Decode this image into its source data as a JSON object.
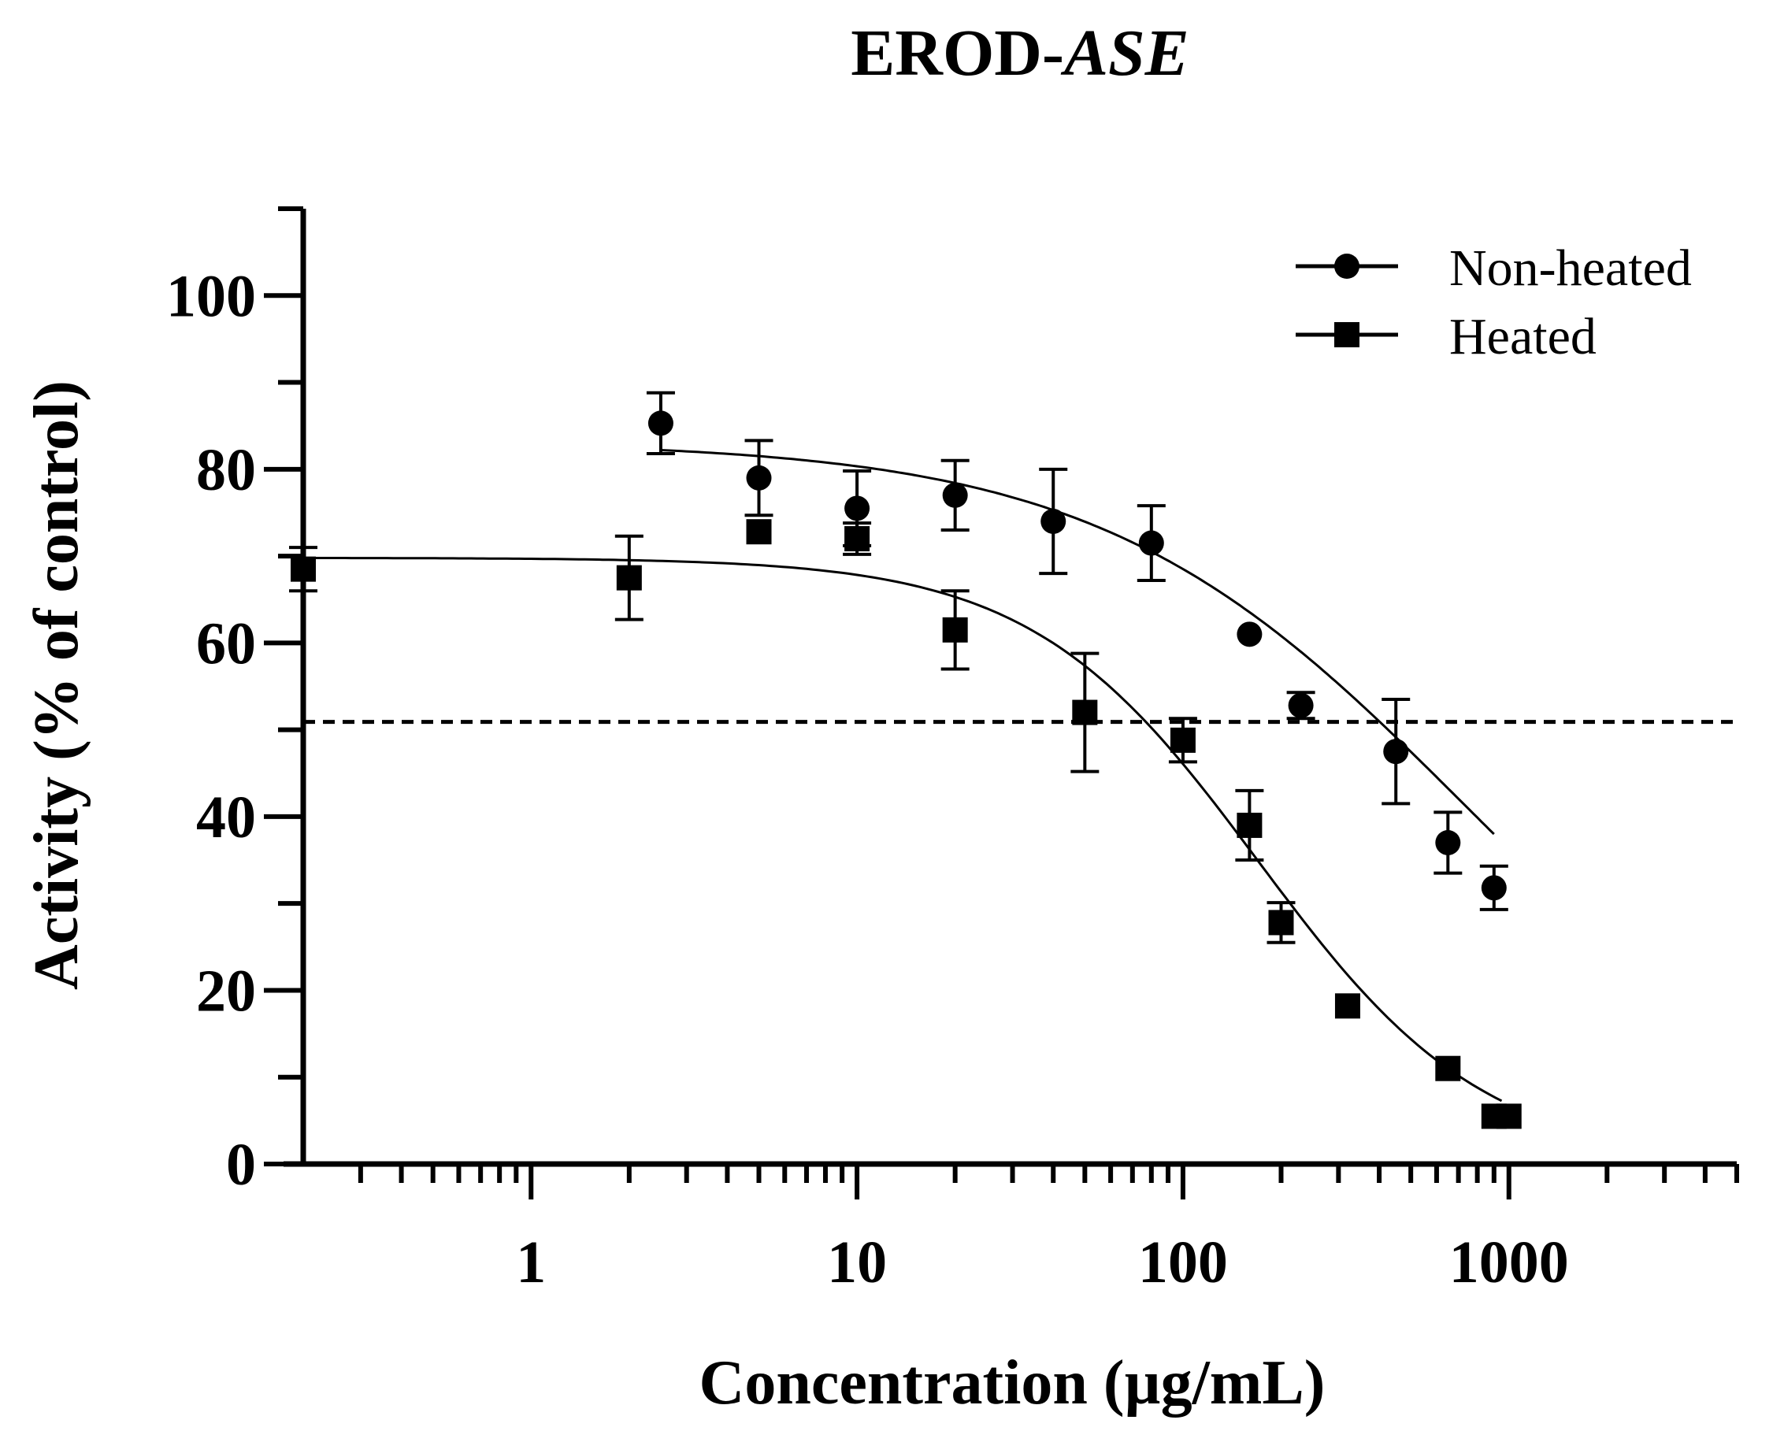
{
  "chart_data": {
    "type": "scatter",
    "title_main": "EROD-",
    "title_italic": "ASE",
    "xlabel": "Concentration (µg/mL)",
    "ylabel": "Activity (% of control)",
    "xscale": "log",
    "xlim": [
      0.2,
      5000
    ],
    "ylim": [
      0,
      110
    ],
    "x_ticks": [
      1,
      10,
      100,
      1000
    ],
    "x_tick_labels": [
      "1",
      "10",
      "100",
      "1000"
    ],
    "y_ticks": [
      0,
      20,
      40,
      60,
      80,
      100
    ],
    "y_tick_labels": [
      "0",
      "20",
      "40",
      "60",
      "80",
      "100"
    ],
    "reference_line": {
      "y": 50,
      "style": "dashed"
    },
    "legend_position": "top-right",
    "series": [
      {
        "name": "Non-heated",
        "marker": "circle",
        "points": [
          {
            "x": 2.5,
            "y": 85.3,
            "err": 3.5
          },
          {
            "x": 5,
            "y": 79.0,
            "err": 4.3
          },
          {
            "x": 10,
            "y": 75.5,
            "err": 4.3
          },
          {
            "x": 20,
            "y": 77.0,
            "err": 4.0
          },
          {
            "x": 40,
            "y": 74.0,
            "err": 6.0
          },
          {
            "x": 80,
            "y": 71.5,
            "err": 4.3
          },
          {
            "x": 160,
            "y": 61.0,
            "err": 0
          },
          {
            "x": 230,
            "y": 52.8,
            "err": 1.5
          },
          {
            "x": 450,
            "y": 47.5,
            "err": 6.0
          },
          {
            "x": 650,
            "y": 37.0,
            "err": 3.5
          },
          {
            "x": 900,
            "y": 31.8,
            "err": 2.5
          }
        ],
        "fit": {
          "top": 83.2,
          "bottom": 0,
          "ec50": 720,
          "hill": 0.78,
          "x_range": [
            2.5,
            900
          ]
        }
      },
      {
        "name": "Heated",
        "marker": "square",
        "points": [
          {
            "x": 0.2,
            "y": 68.5,
            "err": 2.5
          },
          {
            "x": 2,
            "y": 67.5,
            "err": 4.8
          },
          {
            "x": 5,
            "y": 72.8,
            "err": 0
          },
          {
            "x": 10,
            "y": 72.0,
            "err": 1.8
          },
          {
            "x": 20,
            "y": 61.5,
            "err": 4.5
          },
          {
            "x": 50,
            "y": 52.0,
            "err": 6.8
          },
          {
            "x": 100,
            "y": 48.8,
            "err": 2.5
          },
          {
            "x": 160,
            "y": 39.0,
            "err": 4.0
          },
          {
            "x": 200,
            "y": 27.8,
            "err": 2.3
          },
          {
            "x": 320,
            "y": 18.2,
            "err": 0
          },
          {
            "x": 650,
            "y": 11.0,
            "err": 0
          },
          {
            "x": 900,
            "y": 5.5,
            "err": 0
          },
          {
            "x": 1000,
            "y": 5.5,
            "err": 0
          }
        ],
        "fit": {
          "top": 69.8,
          "bottom": 0,
          "ec50": 170,
          "hill": 1.25,
          "x_range": [
            0.2,
            950
          ]
        }
      }
    ]
  }
}
